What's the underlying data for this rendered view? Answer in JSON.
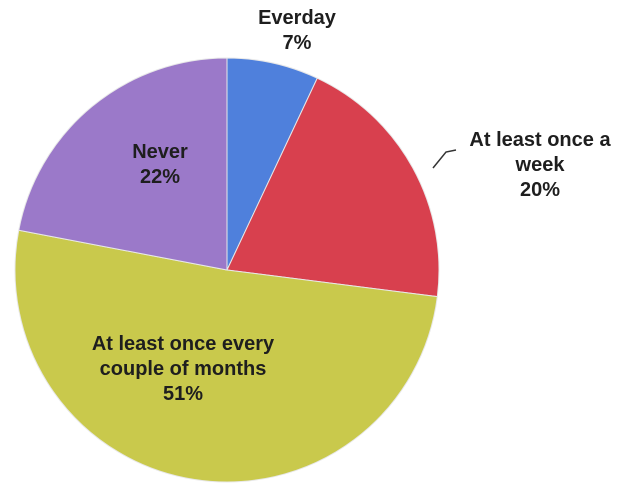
{
  "chart_data": {
    "type": "pie",
    "categories": [
      "Everday",
      "At least once a week",
      "At least once every couple of months",
      "Never"
    ],
    "values": [
      7,
      20,
      51,
      22
    ],
    "value_labels": [
      "7%",
      "20%",
      "51%",
      "22%"
    ],
    "colors": [
      "#4f80dc",
      "#d8404e",
      "#c9c94c",
      "#9b79c9"
    ]
  }
}
